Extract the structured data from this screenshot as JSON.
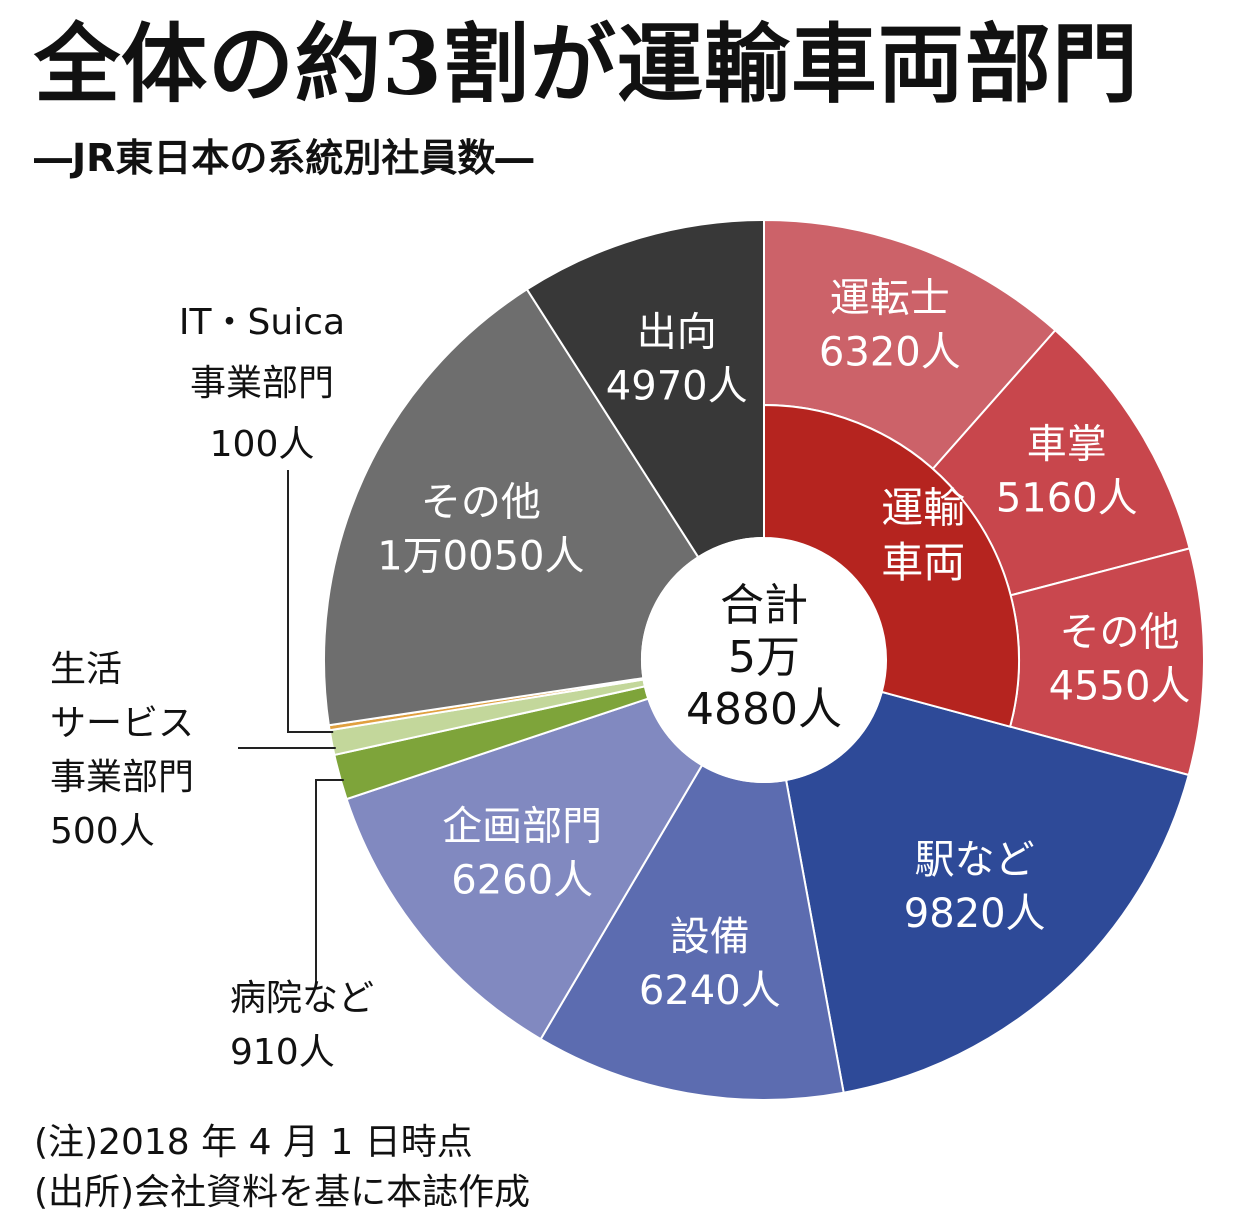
{
  "title": "全体の約3割が運輸車両部門",
  "subtitle": "―JR東日本の系統別社員数―",
  "notes": [
    "(注)2018 年 4 月 1 日時点",
    "(出所)会社資料を基に本誌作成"
  ],
  "chart_data": {
    "type": "pie",
    "style": "donut",
    "total": 54880,
    "center_label": [
      "合計",
      "5万",
      "4880人"
    ],
    "slices": [
      {
        "name": "運転士",
        "value": 6320,
        "label": "運転士",
        "value_label": "6320人",
        "color": "#cc6269",
        "group": "運輸車両"
      },
      {
        "name": "車掌",
        "value": 5160,
        "label": "車掌",
        "value_label": "5160人",
        "color": "#c8464c",
        "group": "運輸車両"
      },
      {
        "name": "その他",
        "value": 4550,
        "label": "その他",
        "value_label": "4550人",
        "color": "#c9474e",
        "group": "運輸車両"
      },
      {
        "name": "駅など",
        "value": 9820,
        "label": "駅など",
        "value_label": "9820人",
        "color": "#2e4a98"
      },
      {
        "name": "設備",
        "value": 6240,
        "label": "設備",
        "value_label": "6240人",
        "color": "#5c6cb0"
      },
      {
        "name": "企画部門",
        "value": 6260,
        "label": "企画部門",
        "value_label": "6260人",
        "color": "#8189c0"
      },
      {
        "name": "病院など",
        "value": 910,
        "label": "病院など",
        "value_label": "910人",
        "color": "#7ea43a"
      },
      {
        "name": "生活サービス事業部門",
        "value": 500,
        "label": "生活サービス事業部門",
        "value_label": "500人",
        "color": "#c3d79b"
      },
      {
        "name": "IT・Suica事業部門",
        "value": 100,
        "label": "IT・Suica事業部門",
        "value_label": "100人",
        "color": "#e0a040"
      },
      {
        "name": "その他",
        "value": 10050,
        "label": "その他",
        "value_label": "1万0050人",
        "color": "#6e6e6e"
      },
      {
        "name": "出向",
        "value": 4970,
        "label": "出向",
        "value_label": "4970人",
        "color": "#383838"
      }
    ],
    "group_labels": [
      {
        "name": "運輸車両",
        "lines": [
          "運輸",
          "車両"
        ],
        "value": 16030,
        "color": "#b5241f"
      }
    ],
    "outside_labels": [
      {
        "lines": [
          "IT・Suica",
          "事業部門",
          "100人"
        ]
      },
      {
        "lines": [
          "生活",
          "サービス",
          "事業部門",
          "500人"
        ]
      },
      {
        "lines": [
          "病院など",
          "910人"
        ]
      }
    ]
  }
}
